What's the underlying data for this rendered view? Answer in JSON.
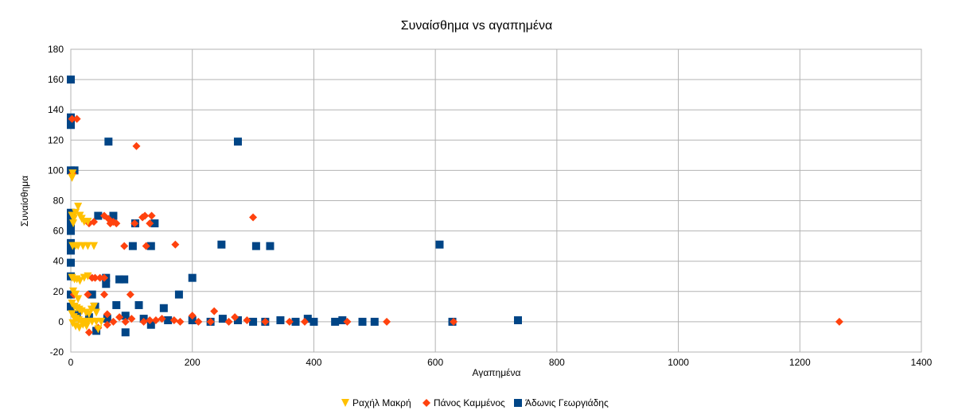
{
  "chart_data": {
    "type": "scatter",
    "title": "Συναίσθημα vs αγαπημένα",
    "xlabel": "Αγαπημένα",
    "ylabel": "Συναίσθημα",
    "xlim": [
      0,
      1400
    ],
    "ylim": [
      -20,
      180
    ],
    "xticks": [
      0,
      200,
      400,
      600,
      800,
      1000,
      1200,
      1400
    ],
    "yticks": [
      -20,
      0,
      20,
      40,
      60,
      80,
      100,
      120,
      140,
      160,
      180
    ],
    "grid": true,
    "legend_position": "bottom",
    "series": [
      {
        "name": "Ραχήλ Μακρή",
        "marker": "triangle-down",
        "color": "#ffc000",
        "points": [
          [
            2,
            95
          ],
          [
            3,
            98
          ],
          [
            2,
            70
          ],
          [
            5,
            68
          ],
          [
            8,
            72
          ],
          [
            12,
            76
          ],
          [
            15,
            70
          ],
          [
            18,
            68
          ],
          [
            22,
            66
          ],
          [
            28,
            66
          ],
          [
            4,
            65
          ],
          [
            3,
            50
          ],
          [
            8,
            50
          ],
          [
            12,
            50
          ],
          [
            20,
            50
          ],
          [
            28,
            50
          ],
          [
            38,
            50
          ],
          [
            2,
            29
          ],
          [
            6,
            28
          ],
          [
            10,
            28
          ],
          [
            15,
            27
          ],
          [
            22,
            29
          ],
          [
            28,
            30
          ],
          [
            4,
            20
          ],
          [
            8,
            18
          ],
          [
            12,
            15
          ],
          [
            2,
            12
          ],
          [
            6,
            10
          ],
          [
            10,
            9
          ],
          [
            14,
            8
          ],
          [
            18,
            7
          ],
          [
            25,
            6
          ],
          [
            30,
            5
          ],
          [
            34,
            8
          ],
          [
            38,
            10
          ],
          [
            42,
            6
          ],
          [
            2,
            5
          ],
          [
            5,
            3
          ],
          [
            9,
            2
          ],
          [
            13,
            1
          ],
          [
            17,
            0
          ],
          [
            22,
            0
          ],
          [
            28,
            0
          ],
          [
            35,
            0
          ],
          [
            42,
            0
          ],
          [
            50,
            0
          ],
          [
            3,
            -1
          ],
          [
            8,
            -3
          ],
          [
            14,
            -4
          ],
          [
            20,
            -2
          ],
          [
            26,
            -3
          ],
          [
            45,
            -5
          ]
        ]
      },
      {
        "name": "Πάνος Καμμένος",
        "marker": "diamond",
        "color": "#ff420e",
        "points": [
          [
            2,
            134
          ],
          [
            10,
            134
          ],
          [
            108,
            116
          ],
          [
            3,
            98
          ],
          [
            300,
            69
          ],
          [
            55,
            70
          ],
          [
            62,
            68
          ],
          [
            65,
            65
          ],
          [
            70,
            66
          ],
          [
            75,
            65
          ],
          [
            118,
            69
          ],
          [
            122,
            70
          ],
          [
            133,
            70
          ],
          [
            130,
            65
          ],
          [
            105,
            65
          ],
          [
            30,
            65
          ],
          [
            38,
            66
          ],
          [
            172,
            51
          ],
          [
            88,
            50
          ],
          [
            124,
            50
          ],
          [
            40,
            29
          ],
          [
            48,
            29
          ],
          [
            55,
            29
          ],
          [
            35,
            29
          ],
          [
            98,
            18
          ],
          [
            55,
            18
          ],
          [
            28,
            18
          ],
          [
            5,
            18
          ],
          [
            236,
            7
          ],
          [
            60,
            5
          ],
          [
            80,
            3
          ],
          [
            100,
            2
          ],
          [
            130,
            1
          ],
          [
            150,
            2
          ],
          [
            170,
            1
          ],
          [
            180,
            0
          ],
          [
            200,
            4
          ],
          [
            210,
            0
          ],
          [
            230,
            0
          ],
          [
            260,
            0
          ],
          [
            270,
            3
          ],
          [
            290,
            1
          ],
          [
            320,
            0
          ],
          [
            360,
            0
          ],
          [
            385,
            0
          ],
          [
            455,
            0
          ],
          [
            520,
            0
          ],
          [
            630,
            0
          ],
          [
            1265,
            0
          ],
          [
            30,
            -7
          ],
          [
            45,
            -4
          ],
          [
            60,
            -2
          ],
          [
            120,
            0
          ],
          [
            140,
            1
          ],
          [
            90,
            0
          ],
          [
            70,
            0
          ],
          [
            20,
            0
          ]
        ]
      },
      {
        "name": "Άδωνις Γεωργιάδης",
        "marker": "square",
        "color": "#004586",
        "points": [
          [
            0,
            160
          ],
          [
            0,
            135
          ],
          [
            0,
            130
          ],
          [
            62,
            119
          ],
          [
            275,
            119
          ],
          [
            0,
            100
          ],
          [
            6,
            100
          ],
          [
            0,
            72
          ],
          [
            0,
            68
          ],
          [
            0,
            65
          ],
          [
            0,
            60
          ],
          [
            45,
            70
          ],
          [
            70,
            70
          ],
          [
            106,
            65
          ],
          [
            138,
            65
          ],
          [
            0,
            52
          ],
          [
            0,
            47
          ],
          [
            102,
            50
          ],
          [
            132,
            50
          ],
          [
            248,
            51
          ],
          [
            305,
            50
          ],
          [
            328,
            50
          ],
          [
            607,
            51
          ],
          [
            0,
            39
          ],
          [
            0,
            30
          ],
          [
            58,
            29
          ],
          [
            58,
            25
          ],
          [
            80,
            28
          ],
          [
            88,
            28
          ],
          [
            200,
            29
          ],
          [
            178,
            18
          ],
          [
            35,
            18
          ],
          [
            0,
            18
          ],
          [
            0,
            10
          ],
          [
            40,
            10
          ],
          [
            75,
            11
          ],
          [
            112,
            11
          ],
          [
            153,
            9
          ],
          [
            10,
            5
          ],
          [
            30,
            3
          ],
          [
            60,
            2
          ],
          [
            90,
            4
          ],
          [
            120,
            2
          ],
          [
            160,
            1
          ],
          [
            200,
            1
          ],
          [
            230,
            0
          ],
          [
            250,
            2
          ],
          [
            275,
            1
          ],
          [
            300,
            0
          ],
          [
            320,
            0
          ],
          [
            345,
            1
          ],
          [
            370,
            0
          ],
          [
            390,
            2
          ],
          [
            400,
            0
          ],
          [
            435,
            0
          ],
          [
            447,
            1
          ],
          [
            480,
            0
          ],
          [
            500,
            0
          ],
          [
            628,
            0
          ],
          [
            736,
            1
          ],
          [
            42,
            -6
          ],
          [
            90,
            -7
          ],
          [
            132,
            -2
          ]
        ]
      }
    ]
  }
}
